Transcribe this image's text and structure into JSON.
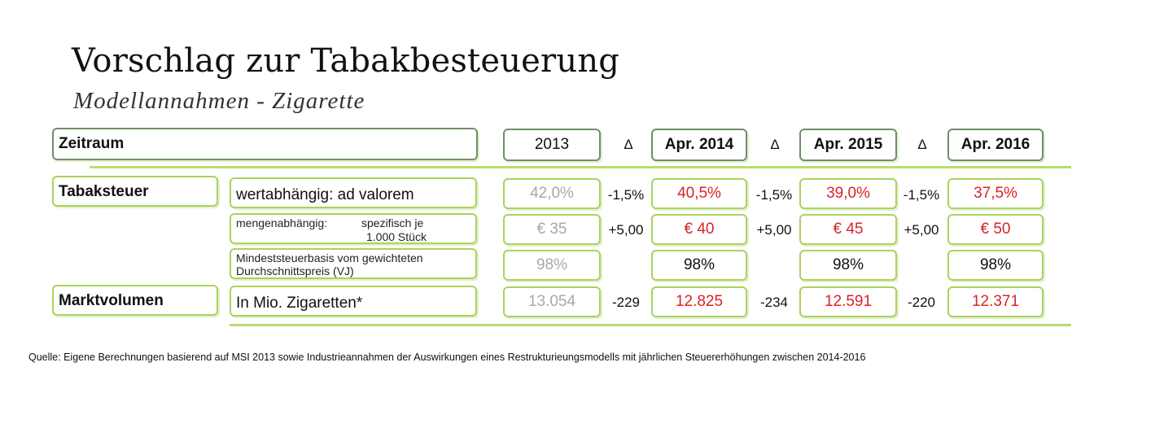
{
  "title": "Vorschlag zur Tabakbesteuerung",
  "subtitle": "Modellannahmen - Zigarette",
  "header": {
    "label": "Zeitraum",
    "years": [
      "2013",
      "Apr. 2014",
      "Apr. 2015",
      "Apr. 2016"
    ],
    "delta": "Δ"
  },
  "rows": {
    "tabaksteuer": {
      "label": "Tabaksteuer",
      "ad_valorem": {
        "desc": "wertabhängig: ad valorem",
        "values": [
          "42,0%",
          "40,5%",
          "39,0%",
          "37,5%"
        ],
        "deltas": [
          "-1,5%",
          "-1,5%",
          "-1,5%"
        ]
      },
      "spezifisch": {
        "desc_a": "mengenabhängig:",
        "desc_b": "spezifisch je",
        "desc_c": "1.000 Stück",
        "values": [
          "€ 35",
          "€ 40",
          "€ 45",
          "€ 50"
        ],
        "deltas": [
          "+5,00",
          "+5,00",
          "+5,00"
        ]
      },
      "mindest": {
        "desc_a": "Mindeststeuerbasis vom gewichteten",
        "desc_b": "Durchschnittspreis (VJ)",
        "values": [
          "98%",
          "98%",
          "98%",
          "98%"
        ]
      }
    },
    "marktvolumen": {
      "label": "Marktvolumen",
      "desc": "In Mio. Zigaretten*",
      "values": [
        "13.054",
        "12.825",
        "12.591",
        "12.371"
      ],
      "deltas": [
        "-229",
        "-234",
        "-220"
      ]
    }
  },
  "source": "Quelle: Eigene Berechnungen basierend auf MSI 2013 sowie Industrieannahmen der Auswirkungen eines Restrukturieungsmodells mit jährlichen Steuererhöhungen zwischen 2014-2016",
  "colors": {
    "accent_green": "#a9d35a",
    "value_red": "#d8232a",
    "base_gray": "#a8a8a8"
  }
}
